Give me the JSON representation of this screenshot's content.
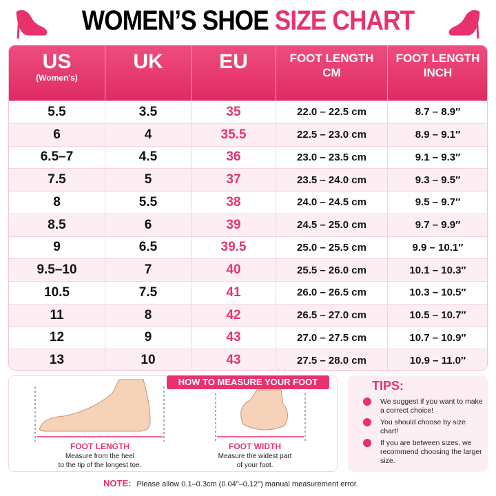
{
  "header": {
    "title_black": "WOMEN’S SHOE",
    "title_pink": "SIZE CHART"
  },
  "table": {
    "headers": [
      {
        "main": "US",
        "sub": "(Women's)"
      },
      {
        "main": "UK"
      },
      {
        "main": "EU"
      },
      {
        "line1": "FOOT LENGTH",
        "line2": "CM"
      },
      {
        "line1": "FOOT LENGTH",
        "line2": "INCH"
      }
    ],
    "rows": [
      [
        "5.5",
        "3.5",
        "35",
        "22.0 – 22.5 cm",
        "8.7 – 8.9″"
      ],
      [
        "6",
        "4",
        "35.5",
        "22.5 – 23.0 cm",
        "8.9 – 9.1″"
      ],
      [
        "6.5–7",
        "4.5",
        "36",
        "23.0 – 23.5 cm",
        "9.1 – 9.3″"
      ],
      [
        "7.5",
        "5",
        "37",
        "23.5 – 24.0 cm",
        "9.3 – 9.5″"
      ],
      [
        "8",
        "5.5",
        "38",
        "24.0 – 24.5 cm",
        "9.5 – 9.7″"
      ],
      [
        "8.5",
        "6",
        "39",
        "24.5 – 25.0 cm",
        "9.7 – 9.9″"
      ],
      [
        "9",
        "6.5",
        "39.5",
        "25.0 – 25.5 cm",
        "9.9 – 10.1″"
      ],
      [
        "9.5–10",
        "7",
        "40",
        "25.5 – 26.0 cm",
        "10.1 – 10.3″"
      ],
      [
        "10.5",
        "7.5",
        "41",
        "26.0 – 26.5 cm",
        "10.3 – 10.5″"
      ],
      [
        "11",
        "8",
        "42",
        "26.5 – 27.0 cm",
        "10.5 – 10.7″"
      ],
      [
        "12",
        "9",
        "43",
        "27.0 – 27.5 cm",
        "10.7 – 10.9″"
      ],
      [
        "13",
        "10",
        "43",
        "27.5 – 28.0 cm",
        "10.9 – 11.0″"
      ]
    ]
  },
  "measure": {
    "title": "HOW TO MEASURE YOUR FOOT",
    "length_label": "FOOT LENGTH",
    "length_desc_1": "Measure from the heel",
    "length_desc_2": "to the tip of the longest toe.",
    "width_label": "FOOT WIDTH",
    "width_desc_1": "Measure the widest part",
    "width_desc_2": "of your foot."
  },
  "tips": {
    "title": "TIPS:",
    "items": [
      "We suggest if you want to make a correct choice!",
      "You should choose by size chart!",
      "If you are between sizes, we recommend choosing the larger size."
    ]
  },
  "note": {
    "label": "NOTE:",
    "text": "Please allow 0.1–0.3cm (0.04″–0.12″) manual measurement error."
  }
}
